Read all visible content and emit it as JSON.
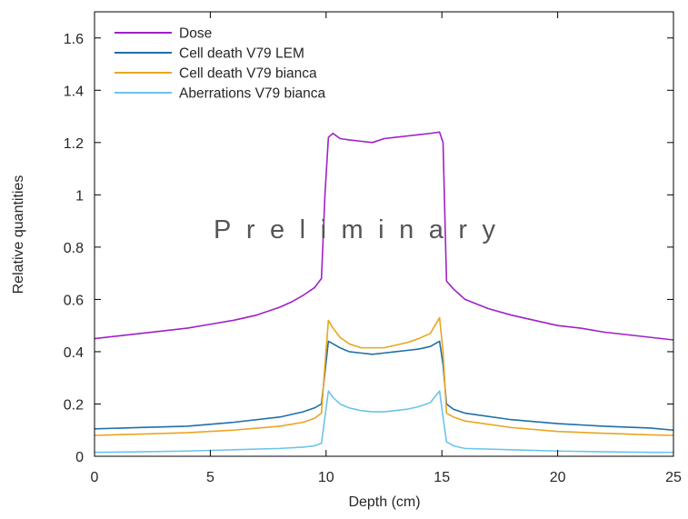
{
  "chart_data": {
    "type": "line",
    "title": "",
    "xlabel": "Depth (cm)",
    "ylabel": "Relative quantities",
    "xlim": [
      0,
      25
    ],
    "ylim": [
      0,
      1.7
    ],
    "xticks": [
      0,
      5,
      10,
      15,
      20,
      25
    ],
    "yticks": [
      0,
      0.2,
      0.4,
      0.6,
      0.8,
      1,
      1.2,
      1.4,
      1.6
    ],
    "ytick_labels": [
      "0",
      "0.2",
      "0.4",
      "0.6",
      "0.8",
      "1",
      "1.2",
      "1.4",
      "1.6"
    ],
    "grid": false,
    "legend_position": "top-left",
    "annotation": "Preliminary",
    "series": [
      {
        "name": "Dose",
        "color": "#a020c8",
        "x": [
          0,
          1,
          2,
          3,
          4,
          5,
          6,
          7,
          8,
          8.5,
          9,
          9.5,
          9.8,
          9.95,
          10.1,
          10.3,
          10.6,
          11,
          11.5,
          12,
          12.5,
          13,
          13.5,
          14,
          14.5,
          14.9,
          15.05,
          15.2,
          15.5,
          16,
          17,
          18,
          19,
          20,
          21,
          22,
          23,
          24,
          25
        ],
        "y": [
          0.45,
          0.46,
          0.47,
          0.48,
          0.49,
          0.505,
          0.52,
          0.54,
          0.57,
          0.59,
          0.615,
          0.645,
          0.68,
          1.0,
          1.22,
          1.235,
          1.215,
          1.21,
          1.205,
          1.2,
          1.215,
          1.22,
          1.225,
          1.23,
          1.235,
          1.24,
          1.2,
          0.67,
          0.64,
          0.6,
          0.565,
          0.54,
          0.52,
          0.5,
          0.49,
          0.475,
          0.465,
          0.455,
          0.445
        ]
      },
      {
        "name": "Cell death V79 LEM",
        "color": "#1f6fa8",
        "x": [
          0,
          2,
          4,
          6,
          8,
          9,
          9.5,
          9.8,
          9.95,
          10.1,
          10.3,
          10.6,
          11,
          11.5,
          12,
          12.5,
          13,
          13.5,
          14,
          14.5,
          14.9,
          15.05,
          15.2,
          15.5,
          16,
          18,
          20,
          22,
          24,
          25
        ],
        "y": [
          0.105,
          0.11,
          0.115,
          0.13,
          0.15,
          0.17,
          0.185,
          0.2,
          0.32,
          0.44,
          0.43,
          0.415,
          0.4,
          0.395,
          0.39,
          0.395,
          0.4,
          0.405,
          0.41,
          0.42,
          0.44,
          0.35,
          0.2,
          0.18,
          0.165,
          0.14,
          0.125,
          0.115,
          0.108,
          0.1
        ]
      },
      {
        "name": "Cell death V79 bianca",
        "color": "#e9a520",
        "x": [
          0,
          2,
          4,
          6,
          8,
          9,
          9.5,
          9.8,
          9.95,
          10.1,
          10.3,
          10.6,
          11,
          11.5,
          12,
          12.5,
          13,
          13.5,
          14,
          14.5,
          14.9,
          15.05,
          15.2,
          15.5,
          16,
          18,
          20,
          22,
          24,
          25
        ],
        "y": [
          0.08,
          0.085,
          0.09,
          0.1,
          0.115,
          0.13,
          0.145,
          0.165,
          0.35,
          0.52,
          0.49,
          0.455,
          0.43,
          0.415,
          0.415,
          0.415,
          0.425,
          0.435,
          0.45,
          0.47,
          0.53,
          0.4,
          0.165,
          0.15,
          0.135,
          0.11,
          0.095,
          0.088,
          0.082,
          0.08
        ]
      },
      {
        "name": "Aberrations V79 bianca",
        "color": "#6cc3ec",
        "x": [
          0,
          2,
          4,
          6,
          8,
          9,
          9.5,
          9.8,
          9.95,
          10.1,
          10.3,
          10.6,
          11,
          11.5,
          12,
          12.5,
          13,
          13.5,
          14,
          14.5,
          14.9,
          15.05,
          15.2,
          15.5,
          16,
          18,
          20,
          22,
          24,
          25
        ],
        "y": [
          0.015,
          0.017,
          0.02,
          0.025,
          0.03,
          0.035,
          0.04,
          0.05,
          0.15,
          0.25,
          0.225,
          0.2,
          0.185,
          0.175,
          0.17,
          0.17,
          0.175,
          0.18,
          0.19,
          0.205,
          0.25,
          0.15,
          0.055,
          0.04,
          0.03,
          0.025,
          0.02,
          0.017,
          0.015,
          0.015
        ]
      }
    ]
  }
}
